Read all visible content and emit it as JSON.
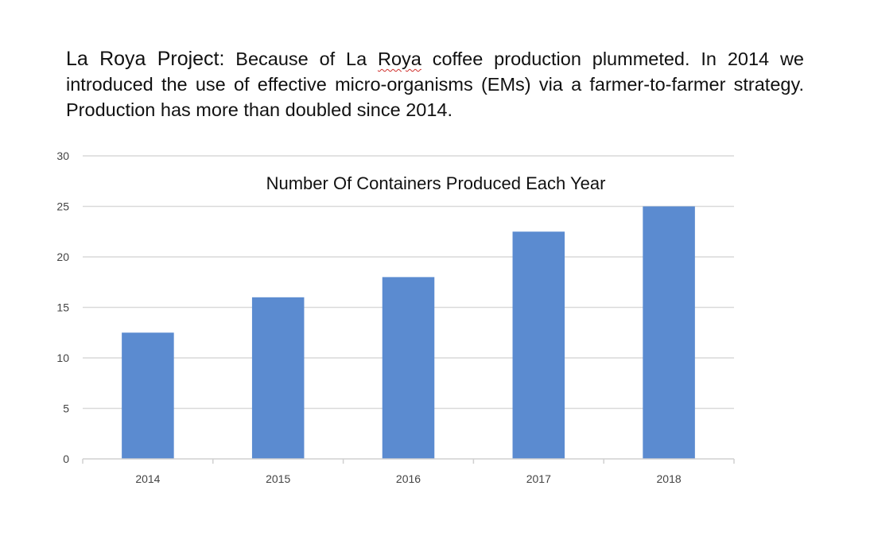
{
  "intro": {
    "lead": "La Roya Project:",
    "part1": " Because of La ",
    "misspelled": "Roya",
    "part2": " coffee production plummeted. In 2014 we introduced the use of effective micro-organisms (EMs) via a farmer-to-farmer strategy. Production has more than doubled since 2014."
  },
  "chart_data": {
    "type": "bar",
    "title": "Number Of Containers Produced Each Year",
    "categories": [
      "2014",
      "2015",
      "2016",
      "2017",
      "2018"
    ],
    "values": [
      12.5,
      16,
      18,
      22.5,
      25
    ],
    "ylim": [
      0,
      30
    ],
    "yticks": [
      0,
      5,
      10,
      15,
      20,
      25,
      30
    ],
    "grid": true,
    "legend": "none",
    "bar_color": "#5b8bd0",
    "grid_color": "#d9d9d9"
  }
}
